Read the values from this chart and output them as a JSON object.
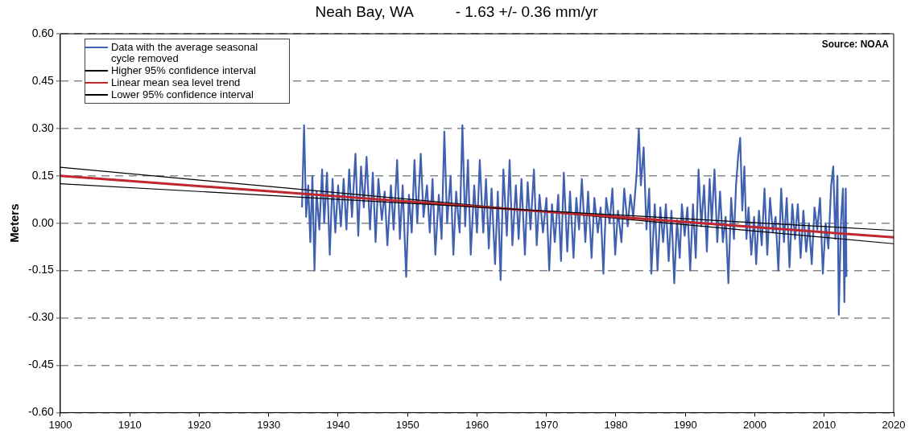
{
  "chart_data": {
    "type": "line",
    "title": "Neah Bay, WA          - 1.63 +/- 0.36 mm/yr",
    "ylabel": "Meters",
    "annotations": [
      "Source: NOAA"
    ],
    "xlim": [
      1900,
      2020
    ],
    "xticks": [
      1900,
      1910,
      1920,
      1930,
      1940,
      1950,
      1960,
      1970,
      1980,
      1990,
      2000,
      2010,
      2020
    ],
    "ylim": [
      -0.6,
      0.6
    ],
    "yticks": [
      {
        "value": -0.6,
        "label": "-0.60"
      },
      {
        "value": -0.45,
        "label": "-0.45"
      },
      {
        "value": -0.3,
        "label": "-0.30"
      },
      {
        "value": -0.15,
        "label": "-0.15"
      },
      {
        "value": 0,
        "label": "0.00"
      },
      {
        "value": 0.15,
        "label": "0.15"
      },
      {
        "value": 0.3,
        "label": "0.30"
      },
      {
        "value": 0.45,
        "label": "0.45"
      },
      {
        "value": 0.6,
        "label": "0.60"
      }
    ],
    "grid": "y",
    "legend": "top left",
    "marker": "none",
    "line_style": "solid",
    "series": [
      {
        "name": "Data with the average seasonal cycle removed",
        "color": "#4060b0",
        "x": [
          1934.8,
          1935.1,
          1935.4,
          1935.7,
          1936.0,
          1936.3,
          1936.6,
          1936.9,
          1937.3,
          1937.7,
          1938.0,
          1938.4,
          1938.8,
          1939.2,
          1939.6,
          1940.0,
          1940.4,
          1940.8,
          1941.2,
          1941.6,
          1942.0,
          1942.5,
          1942.9,
          1943.3,
          1943.7,
          1944.1,
          1944.6,
          1945.0,
          1945.4,
          1945.8,
          1946.3,
          1946.7,
          1947.1,
          1947.6,
          1948.0,
          1948.5,
          1948.9,
          1949.3,
          1949.8,
          1950.2,
          1950.6,
          1951.0,
          1951.4,
          1951.9,
          1952.3,
          1952.8,
          1953.2,
          1953.6,
          1954.0,
          1954.5,
          1954.9,
          1955.3,
          1955.7,
          1956.2,
          1956.6,
          1957.0,
          1957.5,
          1957.9,
          1958.3,
          1958.7,
          1959.1,
          1959.6,
          1960.0,
          1960.4,
          1960.9,
          1961.3,
          1961.7,
          1962.1,
          1962.6,
          1963.0,
          1963.4,
          1963.8,
          1964.3,
          1964.7,
          1965.1,
          1965.6,
          1966.0,
          1966.4,
          1966.9,
          1967.3,
          1967.7,
          1968.2,
          1968.6,
          1969.0,
          1969.5,
          1970.0,
          1970.4,
          1970.8,
          1971.2,
          1971.7,
          1972.1,
          1972.5,
          1973.0,
          1973.4,
          1973.9,
          1974.3,
          1974.7,
          1975.1,
          1975.6,
          1976.0,
          1976.5,
          1976.9,
          1977.4,
          1977.8,
          1978.2,
          1978.6,
          1979.1,
          1979.5,
          1979.9,
          1980.3,
          1980.8,
          1981.2,
          1981.7,
          1982.1,
          1982.5,
          1983.0,
          1983.3,
          1983.6,
          1984.0,
          1984.4,
          1984.8,
          1985.1,
          1985.6,
          1986.0,
          1986.4,
          1986.8,
          1987.2,
          1987.6,
          1988.0,
          1988.4,
          1988.8,
          1989.2,
          1989.5,
          1989.9,
          1990.3,
          1990.7,
          1991.1,
          1991.5,
          1991.9,
          1992.3,
          1992.7,
          1993.1,
          1993.5,
          1993.8,
          1994.2,
          1994.6,
          1995.0,
          1995.4,
          1995.8,
          1996.2,
          1996.6,
          1997.0,
          1997.3,
          1997.6,
          1997.9,
          1998.2,
          1998.5,
          1998.8,
          1999.1,
          1999.5,
          1999.9,
          2000.2,
          2000.6,
          2001.0,
          2001.4,
          2001.8,
          2002.2,
          2002.6,
          2003.0,
          2003.4,
          2003.8,
          2004.2,
          2004.6,
          2005.0,
          2005.4,
          2005.8,
          2006.2,
          2006.6,
          2007.0,
          2007.4,
          2007.8,
          2008.2,
          2008.6,
          2009.0,
          2009.4,
          2009.8,
          2010.2,
          2010.6,
          2011.0,
          2011.3,
          2011.6,
          2011.9,
          2012.1,
          2012.4,
          2012.7,
          2012.9,
          2013.1,
          2013.2
        ],
        "values": [
          0.05,
          0.31,
          0.02,
          0.12,
          -0.06,
          0.15,
          -0.15,
          0.1,
          -0.02,
          0.17,
          0.0,
          0.16,
          -0.1,
          0.14,
          -0.03,
          0.12,
          -0.01,
          0.14,
          -0.02,
          0.17,
          0.02,
          0.22,
          -0.04,
          0.18,
          0.05,
          0.21,
          -0.02,
          0.16,
          -0.06,
          0.14,
          0.01,
          0.1,
          -0.07,
          0.12,
          -0.02,
          0.2,
          -0.05,
          0.12,
          -0.17,
          0.09,
          -0.03,
          0.2,
          0.0,
          0.22,
          0.02,
          0.12,
          -0.03,
          0.14,
          -0.1,
          0.09,
          -0.05,
          0.29,
          0.0,
          0.15,
          -0.1,
          0.1,
          -0.03,
          0.31,
          -0.01,
          0.2,
          -0.1,
          0.12,
          -0.03,
          0.2,
          -0.03,
          0.14,
          -0.08,
          0.11,
          -0.13,
          0.1,
          -0.18,
          0.17,
          -0.04,
          0.2,
          -0.07,
          0.12,
          -0.05,
          0.14,
          -0.1,
          0.13,
          -0.02,
          0.17,
          -0.07,
          0.09,
          -0.03,
          0.08,
          -0.15,
          0.06,
          -0.06,
          0.09,
          -0.12,
          0.16,
          -0.09,
          0.1,
          -0.11,
          0.08,
          -0.02,
          0.14,
          -0.06,
          0.1,
          -0.11,
          0.08,
          -0.03,
          0.05,
          -0.16,
          0.08,
          0.0,
          0.11,
          -0.1,
          0.04,
          -0.06,
          0.11,
          -0.01,
          0.09,
          0.02,
          0.16,
          0.3,
          0.12,
          0.24,
          -0.02,
          0.11,
          -0.16,
          0.06,
          -0.15,
          0.05,
          -0.06,
          0.06,
          -0.12,
          0.04,
          -0.19,
          0.01,
          -0.11,
          0.06,
          -0.04,
          0.05,
          -0.15,
          0.06,
          -0.11,
          0.17,
          -0.01,
          0.12,
          -0.09,
          0.14,
          0.0,
          0.17,
          -0.06,
          0.1,
          -0.06,
          0.02,
          -0.19,
          0.08,
          -0.05,
          0.12,
          0.21,
          0.27,
          0.04,
          0.18,
          -0.05,
          0.05,
          -0.1,
          0.02,
          -0.13,
          0.04,
          -0.07,
          0.11,
          -0.1,
          0.08,
          -0.03,
          0.02,
          -0.15,
          0.11,
          -0.06,
          0.08,
          -0.14,
          0.06,
          -0.05,
          0.06,
          -0.11,
          0.04,
          -0.09,
          0.0,
          -0.13,
          0.05,
          -0.02,
          0.08,
          -0.16,
          0.0,
          -0.08,
          0.12,
          0.18,
          -0.05,
          0.15,
          -0.29,
          0.0,
          0.11,
          -0.25,
          0.11,
          -0.17
        ]
      },
      {
        "name": "Higher 95% confidence interval",
        "color": "#000000",
        "x": [
          1900,
          2020
        ],
        "values": [
          0.177,
          -0.065
        ]
      },
      {
        "name": "Linear mean sea level trend",
        "color": "#c0282d",
        "x": [
          1900,
          2020
        ],
        "values": [
          0.15,
          -0.045
        ]
      },
      {
        "name": "Lower 95% confidence interval",
        "color": "#000000",
        "x": [
          1900,
          2020
        ],
        "values": [
          0.125,
          -0.023
        ]
      }
    ]
  }
}
